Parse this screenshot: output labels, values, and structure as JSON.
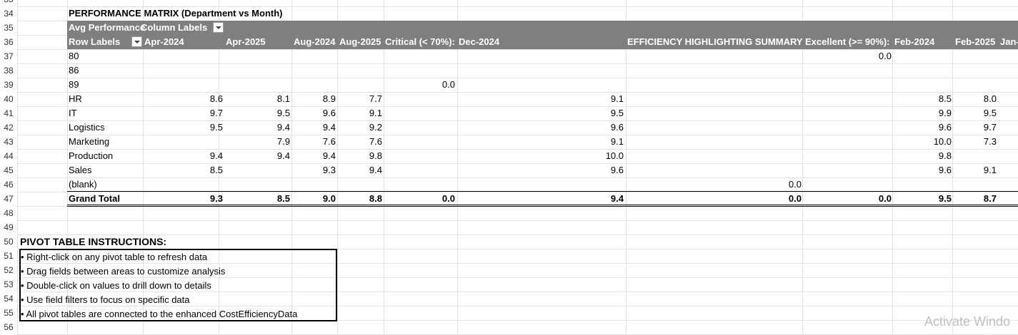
{
  "row_numbers": [
    "35",
    "34",
    "35",
    "36",
    "37",
    "38",
    "39",
    "40",
    "41",
    "42",
    "43",
    "44",
    "45",
    "46",
    "47",
    "48",
    "49",
    "50",
    "51",
    "52",
    "53",
    "54",
    "55",
    "56"
  ],
  "pivot": {
    "title": "PERFORMANCE MATRIX (Department vs Month)",
    "values_label": "Avg Performance",
    "column_labels_caption": "Column Labels",
    "row_labels_caption": "Row Labels",
    "columns": [
      "Apr-2024",
      "Apr-2025",
      "Aug-2024",
      "Aug-2025",
      "Critical (< 70%):",
      "Dec-2024",
      "EFFICIENCY HIGHLIGHTING SUMMARY",
      "Excellent (>= 90%):",
      "Feb-2024",
      "Feb-2025",
      "Jan-"
    ],
    "rows": [
      {
        "label": "80",
        "values": [
          "",
          "",
          "",
          "",
          "",
          "",
          "",
          "0.0",
          "",
          "",
          ""
        ]
      },
      {
        "label": "86",
        "values": [
          "",
          "",
          "",
          "",
          "",
          "",
          "",
          "",
          "",
          "",
          ""
        ]
      },
      {
        "label": "89",
        "values": [
          "",
          "",
          "",
          "",
          "0.0",
          "",
          "",
          "",
          "",
          "",
          ""
        ]
      },
      {
        "label": "HR",
        "values": [
          "8.6",
          "8.1",
          "8.9",
          "7.7",
          "",
          "9.1",
          "",
          "",
          "8.5",
          "8.0",
          ""
        ]
      },
      {
        "label": "IT",
        "values": [
          "9.7",
          "9.5",
          "9.6",
          "9.1",
          "",
          "9.5",
          "",
          "",
          "9.9",
          "9.5",
          ""
        ]
      },
      {
        "label": "Logistics",
        "values": [
          "9.5",
          "9.4",
          "9.4",
          "9.2",
          "",
          "9.6",
          "",
          "",
          "9.6",
          "9.7",
          ""
        ]
      },
      {
        "label": "Marketing",
        "values": [
          "",
          "7.9",
          "7.6",
          "7.6",
          "",
          "9.1",
          "",
          "",
          "10.0",
          "7.3",
          ""
        ]
      },
      {
        "label": "Production",
        "values": [
          "9.4",
          "9.4",
          "9.4",
          "9.8",
          "",
          "10.0",
          "",
          "",
          "9.8",
          "",
          ""
        ]
      },
      {
        "label": "Sales",
        "values": [
          "8.5",
          "",
          "9.3",
          "9.4",
          "",
          "9.6",
          "",
          "",
          "9.6",
          "9.1",
          ""
        ]
      },
      {
        "label": "(blank)",
        "values": [
          "",
          "",
          "",
          "",
          "",
          "",
          "0.0",
          "",
          "",
          "",
          ""
        ]
      }
    ],
    "grand_total": {
      "label": "Grand Total",
      "values": [
        "9.3",
        "8.5",
        "9.0",
        "8.8",
        "0.0",
        "9.4",
        "0.0",
        "0.0",
        "9.5",
        "8.7",
        ""
      ]
    }
  },
  "instructions": {
    "title": "PIVOT TABLE INSTRUCTIONS:",
    "items": [
      "• Right-click on any pivot table to refresh data",
      "• Drag fields between areas to customize analysis",
      "• Double-click on values to drill down to details",
      "• Use field filters to focus on specific data",
      "• All pivot tables are connected to the enhanced CostEfficiencyData"
    ]
  },
  "watermark": "Activate Windo"
}
